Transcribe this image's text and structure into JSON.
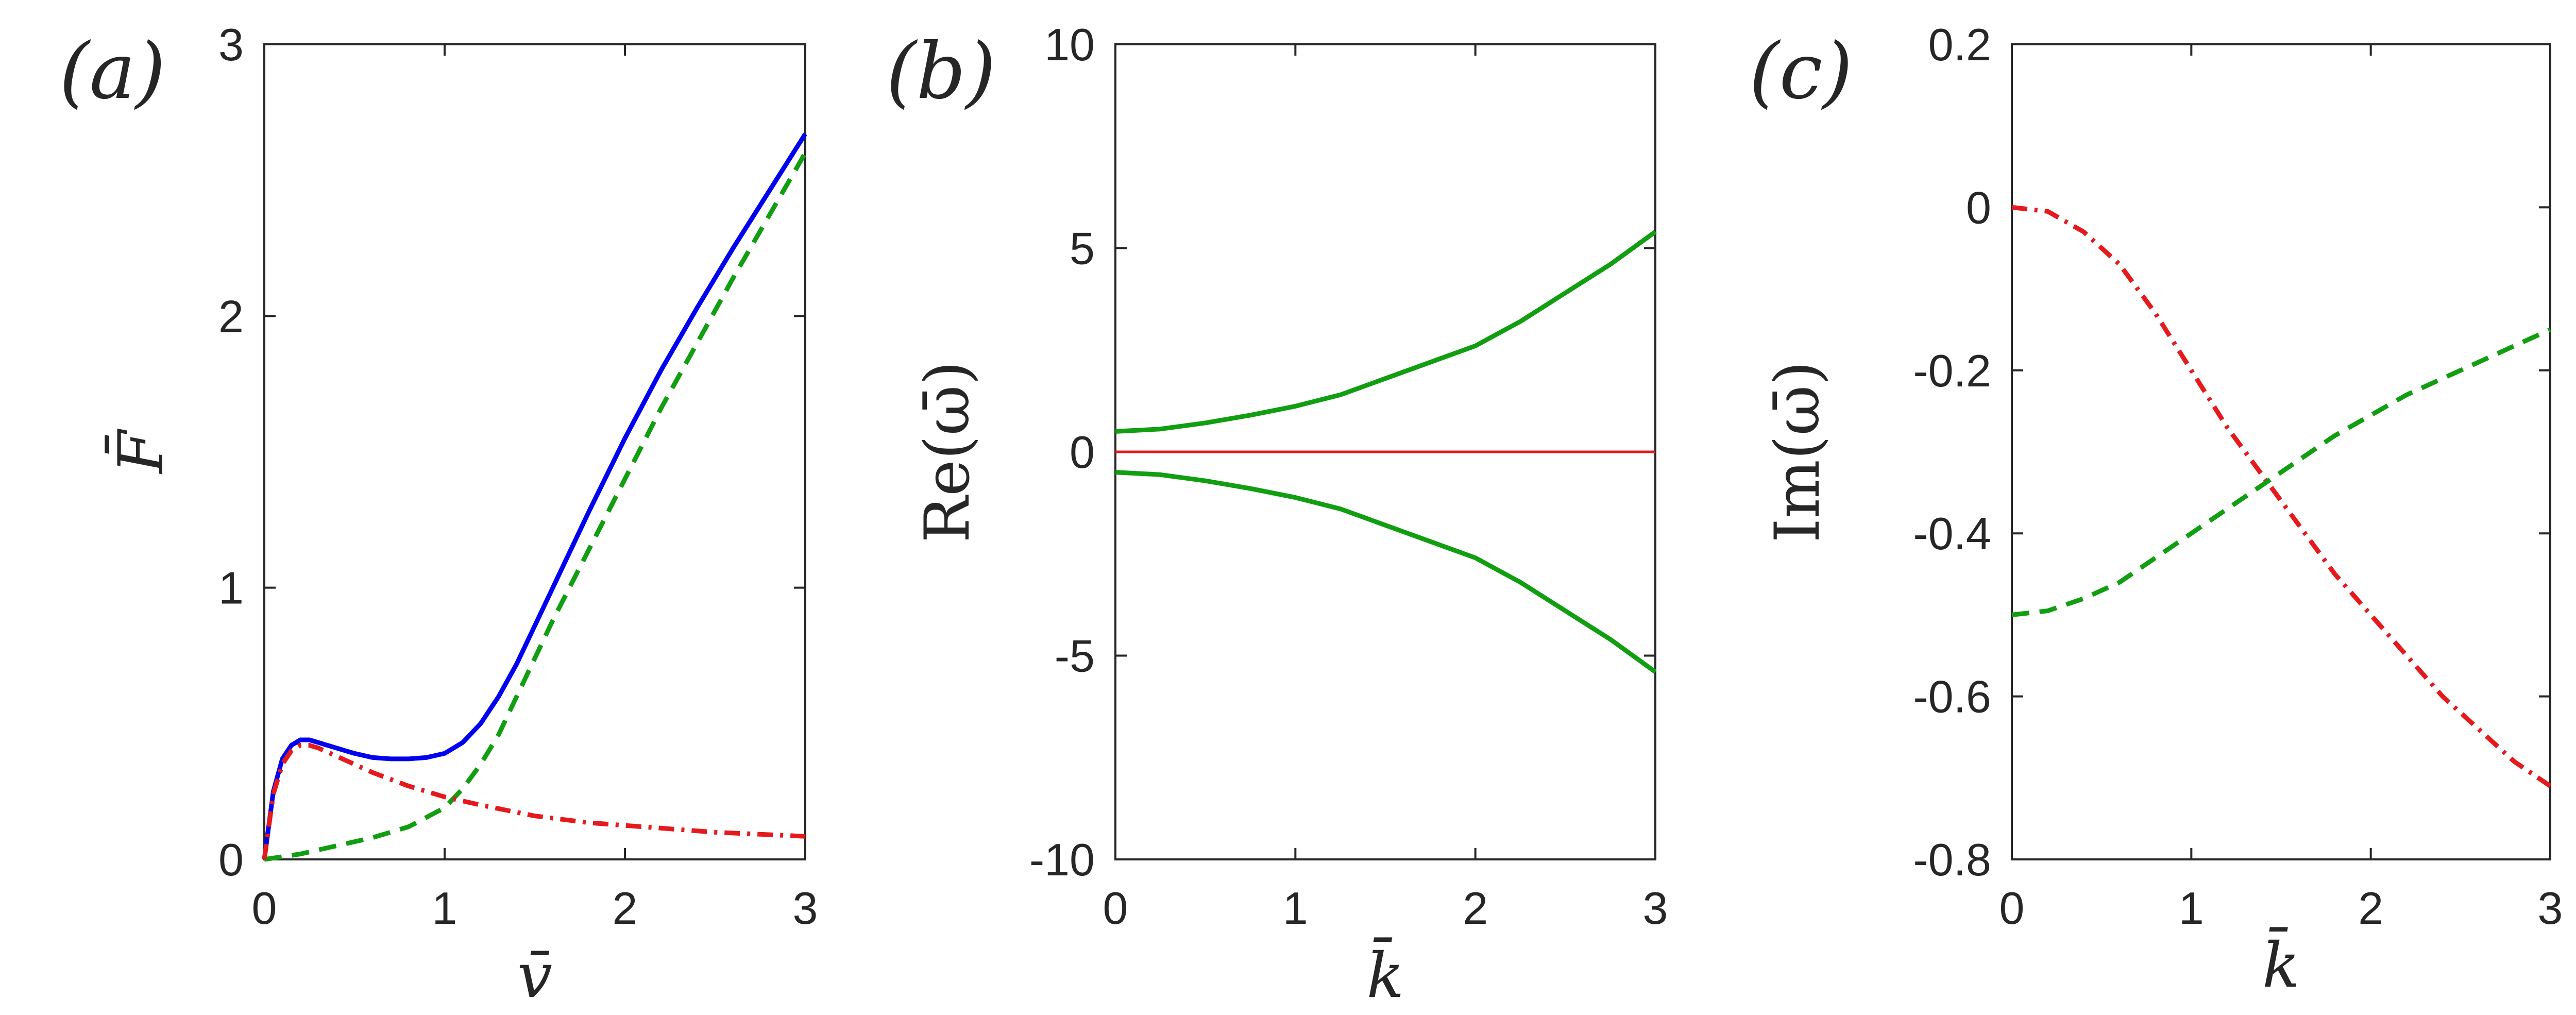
{
  "chart_data": [
    {
      "type": "line",
      "panel_label": "(a)",
      "xlabel": "v̄",
      "ylabel": "F̄",
      "xlim": [
        0,
        3
      ],
      "ylim": [
        0,
        3
      ],
      "xticks": [
        "0",
        "1",
        "2",
        "3"
      ],
      "yticks": [
        "0",
        "1",
        "2",
        "3"
      ],
      "grid": false,
      "series": [
        {
          "color": "#0000ee",
          "style": "solid",
          "x": [
            0,
            0.05,
            0.1,
            0.15,
            0.2,
            0.25,
            0.3,
            0.4,
            0.5,
            0.6,
            0.7,
            0.8,
            0.9,
            1.0,
            1.1,
            1.2,
            1.3,
            1.4,
            1.5,
            1.6,
            1.7,
            1.8,
            2.0,
            2.2,
            2.4,
            2.6,
            2.8,
            3.0
          ],
          "y": [
            0,
            0.25,
            0.37,
            0.42,
            0.44,
            0.44,
            0.43,
            0.41,
            0.39,
            0.375,
            0.37,
            0.37,
            0.375,
            0.39,
            0.43,
            0.5,
            0.6,
            0.72,
            0.86,
            1.0,
            1.14,
            1.28,
            1.55,
            1.8,
            2.03,
            2.25,
            2.46,
            2.67
          ]
        },
        {
          "color": "#119e11",
          "style": "dashed",
          "x": [
            0,
            0.2,
            0.4,
            0.6,
            0.8,
            1.0,
            1.1,
            1.2,
            1.3,
            1.4,
            1.5,
            1.6,
            1.8,
            2.0,
            2.2,
            2.4,
            2.6,
            2.8,
            3.0
          ],
          "y": [
            0,
            0.02,
            0.05,
            0.08,
            0.12,
            0.19,
            0.26,
            0.35,
            0.46,
            0.6,
            0.74,
            0.88,
            1.14,
            1.4,
            1.66,
            1.9,
            2.14,
            2.37,
            2.6
          ]
        },
        {
          "color": "#e41a1c",
          "style": "dashdot",
          "x": [
            0,
            0.05,
            0.1,
            0.15,
            0.2,
            0.25,
            0.3,
            0.4,
            0.5,
            0.6,
            0.8,
            1.0,
            1.2,
            1.5,
            1.8,
            2.0,
            2.5,
            3.0
          ],
          "y": [
            0,
            0.24,
            0.35,
            0.4,
            0.42,
            0.42,
            0.41,
            0.38,
            0.35,
            0.32,
            0.27,
            0.23,
            0.2,
            0.16,
            0.135,
            0.125,
            0.1,
            0.085
          ]
        }
      ]
    },
    {
      "type": "line",
      "panel_label": "(b)",
      "xlabel": "k̄",
      "ylabel": "Re(ω̄)",
      "xlim": [
        0,
        3
      ],
      "ylim": [
        -10,
        10
      ],
      "xticks": [
        "0",
        "1",
        "2",
        "3"
      ],
      "yticks": [
        "-10",
        "-5",
        "0",
        "5",
        "10"
      ],
      "grid": false,
      "series": [
        {
          "color": "#119e11",
          "style": "solid",
          "x": [
            0,
            0.25,
            0.5,
            0.75,
            1.0,
            1.25,
            1.5,
            1.75,
            2.0,
            2.25,
            2.5,
            2.75,
            3.0
          ],
          "y": [
            0.5,
            0.56,
            0.71,
            0.9,
            1.12,
            1.4,
            1.8,
            2.2,
            2.6,
            3.2,
            3.9,
            4.6,
            5.4
          ]
        },
        {
          "color": "#119e11",
          "style": "solid",
          "x": [
            0,
            0.25,
            0.5,
            0.75,
            1.0,
            1.25,
            1.5,
            1.75,
            2.0,
            2.25,
            2.5,
            2.75,
            3.0
          ],
          "y": [
            -0.5,
            -0.56,
            -0.71,
            -0.9,
            -1.12,
            -1.4,
            -1.8,
            -2.2,
            -2.6,
            -3.2,
            -3.9,
            -4.6,
            -5.4
          ]
        },
        {
          "color": "#e41a1c",
          "style": "solid",
          "thin": true,
          "x": [
            0,
            3
          ],
          "y": [
            0,
            0
          ]
        }
      ]
    },
    {
      "type": "line",
      "panel_label": "(c)",
      "xlabel": "k̄",
      "ylabel": "Im(ω̄)",
      "xlim": [
        0,
        3
      ],
      "ylim": [
        -0.8,
        0.2
      ],
      "xticks": [
        "0",
        "1",
        "2",
        "3"
      ],
      "yticks": [
        "-0.8",
        "-0.6",
        "-0.4",
        "-0.2",
        "0",
        "0.2"
      ],
      "grid": false,
      "series": [
        {
          "color": "#e41a1c",
          "style": "dashdot",
          "x": [
            0,
            0.2,
            0.4,
            0.6,
            0.8,
            1.0,
            1.2,
            1.4,
            1.6,
            1.8,
            2.0,
            2.2,
            2.4,
            2.6,
            2.8,
            3.0
          ],
          "y": [
            0,
            -0.005,
            -0.03,
            -0.07,
            -0.13,
            -0.2,
            -0.27,
            -0.33,
            -0.39,
            -0.45,
            -0.5,
            -0.55,
            -0.6,
            -0.64,
            -0.68,
            -0.71
          ]
        },
        {
          "color": "#119e11",
          "style": "dashed",
          "x": [
            0,
            0.2,
            0.4,
            0.6,
            0.8,
            1.0,
            1.2,
            1.4,
            1.6,
            1.8,
            2.0,
            2.2,
            2.4,
            2.6,
            2.8,
            3.0
          ],
          "y": [
            -0.5,
            -0.495,
            -0.48,
            -0.46,
            -0.43,
            -0.4,
            -0.37,
            -0.34,
            -0.31,
            -0.28,
            -0.255,
            -0.23,
            -0.21,
            -0.19,
            -0.17,
            -0.15
          ]
        }
      ]
    }
  ]
}
